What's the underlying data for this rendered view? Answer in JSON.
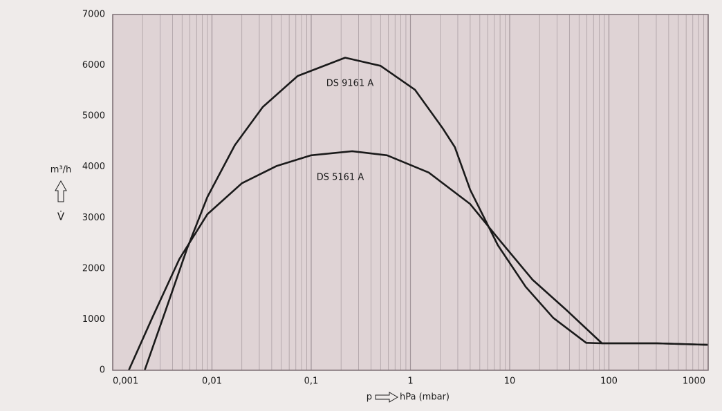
{
  "chart_data": {
    "type": "line",
    "ylabel": "m³/h",
    "ylabel_symbol": "V̇",
    "xlabel_symbol": "p",
    "xlabel": "hPa (mbar)",
    "xscale": "log",
    "grid": true,
    "minor_grid": true,
    "xlim": [
      0.001,
      1000
    ],
    "ylim": [
      0,
      7000
    ],
    "xticks": [
      {
        "value": 0.001,
        "label": "0,001"
      },
      {
        "value": 0.01,
        "label": "0,01"
      },
      {
        "value": 0.1,
        "label": "0,1"
      },
      1,
      10,
      100,
      1000
    ],
    "yticks": [
      0,
      1000,
      2000,
      3000,
      4000,
      5000,
      6000,
      7000
    ],
    "series": [
      {
        "name": "DS 9161 A",
        "color": "#1a1a1a",
        "x": [
          0.0021,
          0.0034,
          0.0056,
          0.009,
          0.017,
          0.0325,
          0.073,
          0.22,
          0.5,
          1.11,
          2.1,
          2.8,
          4.0,
          7.6,
          14.5,
          27.5,
          59,
          85,
          305,
          1000
        ],
        "values": [
          0,
          1170,
          2390,
          3410,
          4430,
          5180,
          5790,
          6150,
          5990,
          5520,
          4770,
          4390,
          3550,
          2460,
          1640,
          1030,
          540,
          530,
          530,
          500
        ]
      },
      {
        "name": "DS 5161 A",
        "color": "#1a1a1a",
        "x": [
          0.00145,
          0.0025,
          0.0047,
          0.009,
          0.02,
          0.045,
          0.1,
          0.26,
          0.58,
          1.53,
          4.0,
          7.6,
          17,
          38,
          85,
          305,
          1000
        ],
        "values": [
          0,
          1030,
          2190,
          3070,
          3680,
          4020,
          4230,
          4310,
          4230,
          3890,
          3270,
          2600,
          1780,
          1170,
          530,
          530,
          500
        ]
      }
    ]
  }
}
